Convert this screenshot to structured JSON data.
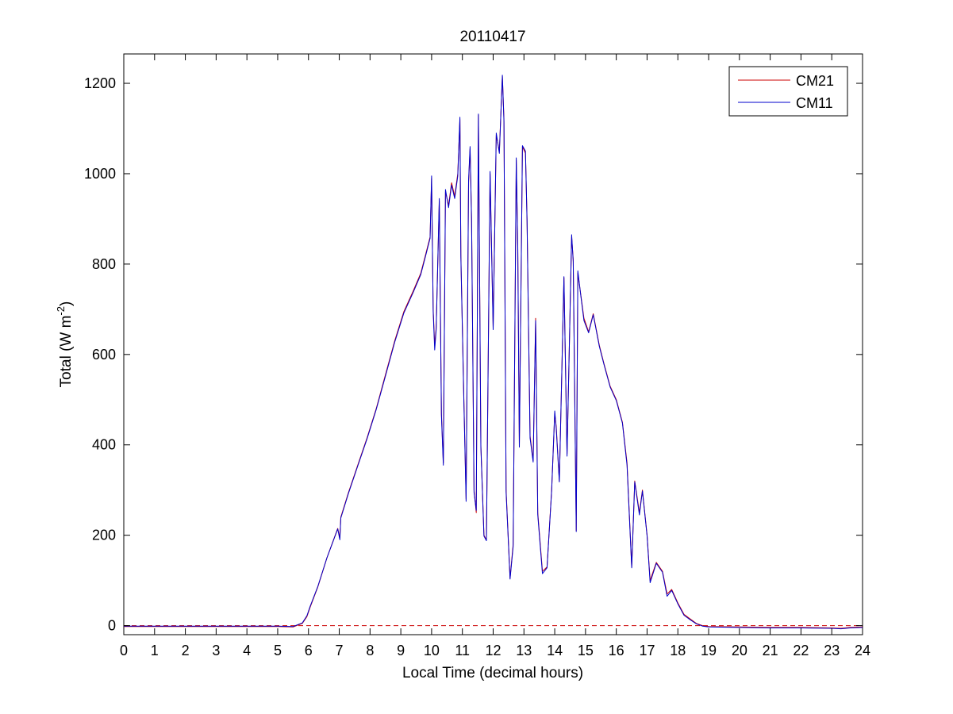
{
  "chart_data": {
    "type": "line",
    "title": "20110417",
    "xlabel": "Local Time (decimal hours)",
    "ylabel_main": "Total (W m",
    "ylabel_sup": "-2",
    "ylabel_close": ")",
    "xlim": [
      0,
      24
    ],
    "ylim": [
      -20,
      1265
    ],
    "x_ticks": [
      0,
      1,
      2,
      3,
      4,
      5,
      6,
      7,
      8,
      9,
      10,
      11,
      12,
      13,
      14,
      15,
      16,
      17,
      18,
      19,
      20,
      21,
      22,
      23,
      24
    ],
    "y_ticks": [
      0,
      200,
      400,
      600,
      800,
      1000,
      1200
    ],
    "grid": false,
    "legend_position": "top-right",
    "zero_reference": {
      "y": 0,
      "style": "dashed",
      "color": "#cc0000"
    },
    "series": [
      {
        "name": "CM21",
        "color": "#cc0000",
        "points": [
          [
            0,
            -2
          ],
          [
            4,
            -2
          ],
          [
            5,
            -2
          ],
          [
            5.5,
            -3
          ],
          [
            5.8,
            5
          ],
          [
            5.95,
            20
          ],
          [
            6.05,
            40
          ],
          [
            6.3,
            85
          ],
          [
            6.6,
            150
          ],
          [
            6.95,
            215
          ],
          [
            7.02,
            195
          ],
          [
            7.05,
            240
          ],
          [
            7.3,
            295
          ],
          [
            7.6,
            355
          ],
          [
            7.9,
            415
          ],
          [
            8.2,
            480
          ],
          [
            8.5,
            555
          ],
          [
            8.8,
            630
          ],
          [
            9.1,
            695
          ],
          [
            9.4,
            740
          ],
          [
            9.65,
            780
          ],
          [
            9.8,
            820
          ],
          [
            9.95,
            860
          ],
          [
            10,
            990
          ],
          [
            10.05,
            700
          ],
          [
            10.1,
            620
          ],
          [
            10.15,
            660
          ],
          [
            10.25,
            940
          ],
          [
            10.32,
            470
          ],
          [
            10.38,
            360
          ],
          [
            10.45,
            960
          ],
          [
            10.55,
            930
          ],
          [
            10.65,
            980
          ],
          [
            10.75,
            950
          ],
          [
            10.85,
            1000
          ],
          [
            10.92,
            1120
          ],
          [
            10.95,
            820
          ],
          [
            11.05,
            500
          ],
          [
            11.12,
            280
          ],
          [
            11.2,
            980
          ],
          [
            11.25,
            1055
          ],
          [
            11.3,
            900
          ],
          [
            11.38,
            300
          ],
          [
            11.45,
            250
          ],
          [
            11.52,
            1130
          ],
          [
            11.6,
            400
          ],
          [
            11.7,
            200
          ],
          [
            11.78,
            190
          ],
          [
            11.9,
            1000
          ],
          [
            12.0,
            660
          ],
          [
            12.1,
            1085
          ],
          [
            12.2,
            1050
          ],
          [
            12.3,
            1215
          ],
          [
            12.35,
            1120
          ],
          [
            12.42,
            300
          ],
          [
            12.55,
            105
          ],
          [
            12.65,
            180
          ],
          [
            12.75,
            1030
          ],
          [
            12.8,
            840
          ],
          [
            12.85,
            400
          ],
          [
            12.95,
            1060
          ],
          [
            13.05,
            1045
          ],
          [
            13.1,
            900
          ],
          [
            13.2,
            420
          ],
          [
            13.3,
            365
          ],
          [
            13.38,
            680
          ],
          [
            13.45,
            250
          ],
          [
            13.6,
            120
          ],
          [
            13.75,
            130
          ],
          [
            13.9,
            300
          ],
          [
            14.0,
            470
          ],
          [
            14.05,
            440
          ],
          [
            14.15,
            320
          ],
          [
            14.3,
            770
          ],
          [
            14.4,
            380
          ],
          [
            14.55,
            860
          ],
          [
            14.6,
            810
          ],
          [
            14.7,
            210
          ],
          [
            14.75,
            780
          ],
          [
            14.85,
            730
          ],
          [
            14.95,
            680
          ],
          [
            15.1,
            650
          ],
          [
            15.25,
            690
          ],
          [
            15.45,
            620
          ],
          [
            15.6,
            580
          ],
          [
            15.8,
            530
          ],
          [
            16.0,
            500
          ],
          [
            16.2,
            450
          ],
          [
            16.35,
            360
          ],
          [
            16.5,
            130
          ],
          [
            16.6,
            320
          ],
          [
            16.75,
            250
          ],
          [
            16.85,
            300
          ],
          [
            17.0,
            200
          ],
          [
            17.1,
            100
          ],
          [
            17.3,
            140
          ],
          [
            17.5,
            120
          ],
          [
            17.65,
            70
          ],
          [
            17.8,
            80
          ],
          [
            18.0,
            50
          ],
          [
            18.2,
            25
          ],
          [
            18.4,
            15
          ],
          [
            18.6,
            5
          ],
          [
            18.8,
            0
          ],
          [
            19.0,
            -2
          ],
          [
            20,
            -3
          ],
          [
            21,
            -4
          ],
          [
            22,
            -4
          ],
          [
            23,
            -5
          ],
          [
            23.3,
            -6
          ],
          [
            23.6,
            -4
          ],
          [
            24,
            -3
          ]
        ]
      },
      {
        "name": "CM11",
        "color": "#0000cc",
        "points": [
          [
            0,
            -1
          ],
          [
            4,
            -1
          ],
          [
            5,
            -1
          ],
          [
            5.5,
            -2
          ],
          [
            5.8,
            6
          ],
          [
            5.95,
            22
          ],
          [
            6.05,
            42
          ],
          [
            6.3,
            86
          ],
          [
            6.6,
            150
          ],
          [
            6.95,
            214
          ],
          [
            7.02,
            190
          ],
          [
            7.05,
            238
          ],
          [
            7.3,
            293
          ],
          [
            7.6,
            353
          ],
          [
            7.9,
            413
          ],
          [
            8.2,
            478
          ],
          [
            8.5,
            552
          ],
          [
            8.8,
            627
          ],
          [
            9.1,
            692
          ],
          [
            9.4,
            737
          ],
          [
            9.65,
            777
          ],
          [
            9.8,
            817
          ],
          [
            9.95,
            857
          ],
          [
            10,
            995
          ],
          [
            10.05,
            695
          ],
          [
            10.1,
            610
          ],
          [
            10.15,
            655
          ],
          [
            10.25,
            945
          ],
          [
            10.32,
            465
          ],
          [
            10.38,
            355
          ],
          [
            10.45,
            965
          ],
          [
            10.55,
            925
          ],
          [
            10.65,
            975
          ],
          [
            10.75,
            945
          ],
          [
            10.85,
            995
          ],
          [
            10.92,
            1125
          ],
          [
            10.95,
            815
          ],
          [
            11.05,
            495
          ],
          [
            11.12,
            275
          ],
          [
            11.2,
            985
          ],
          [
            11.25,
            1060
          ],
          [
            11.3,
            895
          ],
          [
            11.38,
            295
          ],
          [
            11.45,
            255
          ],
          [
            11.52,
            1132
          ],
          [
            11.6,
            395
          ],
          [
            11.7,
            198
          ],
          [
            11.78,
            188
          ],
          [
            11.9,
            1005
          ],
          [
            12.0,
            655
          ],
          [
            12.1,
            1090
          ],
          [
            12.2,
            1045
          ],
          [
            12.3,
            1218
          ],
          [
            12.35,
            1115
          ],
          [
            12.42,
            295
          ],
          [
            12.55,
            103
          ],
          [
            12.65,
            175
          ],
          [
            12.75,
            1035
          ],
          [
            12.8,
            835
          ],
          [
            12.85,
            395
          ],
          [
            12.95,
            1062
          ],
          [
            13.05,
            1050
          ],
          [
            13.1,
            895
          ],
          [
            13.2,
            415
          ],
          [
            13.3,
            362
          ],
          [
            13.38,
            675
          ],
          [
            13.45,
            245
          ],
          [
            13.6,
            115
          ],
          [
            13.75,
            128
          ],
          [
            13.9,
            298
          ],
          [
            14.0,
            475
          ],
          [
            14.05,
            435
          ],
          [
            14.15,
            318
          ],
          [
            14.3,
            772
          ],
          [
            14.4,
            375
          ],
          [
            14.55,
            865
          ],
          [
            14.6,
            805
          ],
          [
            14.7,
            208
          ],
          [
            14.75,
            785
          ],
          [
            14.85,
            728
          ],
          [
            14.95,
            675
          ],
          [
            15.1,
            648
          ],
          [
            15.25,
            688
          ],
          [
            15.45,
            618
          ],
          [
            15.6,
            578
          ],
          [
            15.8,
            528
          ],
          [
            16.0,
            498
          ],
          [
            16.2,
            448
          ],
          [
            16.35,
            355
          ],
          [
            16.5,
            128
          ],
          [
            16.6,
            318
          ],
          [
            16.75,
            245
          ],
          [
            16.85,
            298
          ],
          [
            17.0,
            198
          ],
          [
            17.1,
            95
          ],
          [
            17.3,
            138
          ],
          [
            17.5,
            118
          ],
          [
            17.65,
            65
          ],
          [
            17.8,
            78
          ],
          [
            18.0,
            48
          ],
          [
            18.2,
            23
          ],
          [
            18.4,
            13
          ],
          [
            18.6,
            4
          ],
          [
            18.8,
            -1
          ],
          [
            19.0,
            -3
          ],
          [
            20,
            -4
          ],
          [
            21,
            -5
          ],
          [
            22,
            -5
          ],
          [
            23,
            -6
          ],
          [
            23.3,
            -7
          ],
          [
            23.6,
            -5
          ],
          [
            24,
            -4
          ]
        ]
      }
    ]
  }
}
